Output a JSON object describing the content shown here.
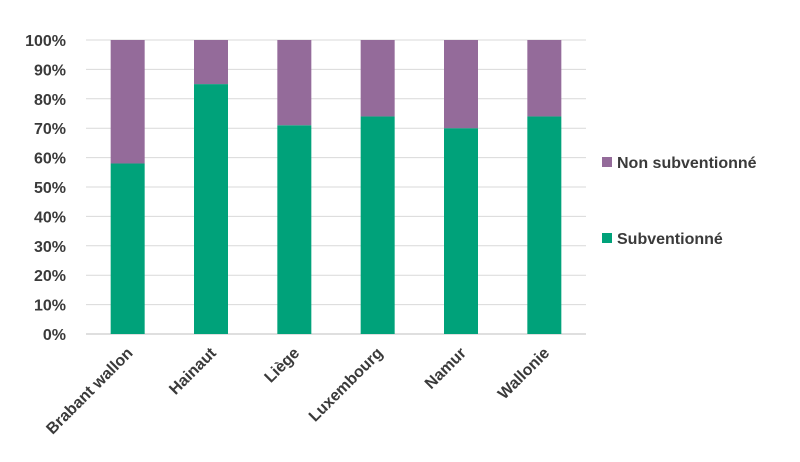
{
  "chart_data": {
    "type": "bar",
    "stacked": true,
    "percent_stacked": true,
    "categories": [
      "Brabant wallon",
      "Hainaut",
      "Liège",
      "Luxembourg",
      "Namur",
      "Wallonie"
    ],
    "series": [
      {
        "name": "Subventionné",
        "color": "#00a27a",
        "values": [
          58,
          85,
          71,
          74,
          70,
          74
        ]
      },
      {
        "name": "Non subventionné",
        "color": "#946b9a",
        "values": [
          42,
          15,
          29,
          26,
          30,
          26
        ]
      }
    ],
    "y_ticks": [
      "0%",
      "10%",
      "20%",
      "30%",
      "40%",
      "50%",
      "60%",
      "70%",
      "80%",
      "90%",
      "100%"
    ],
    "ylim": [
      0,
      100
    ],
    "grid": true,
    "legend_position": "right",
    "legend_order": [
      "Non subventionné",
      "Subventionné"
    ],
    "title": "",
    "xlabel": "",
    "ylabel": ""
  }
}
